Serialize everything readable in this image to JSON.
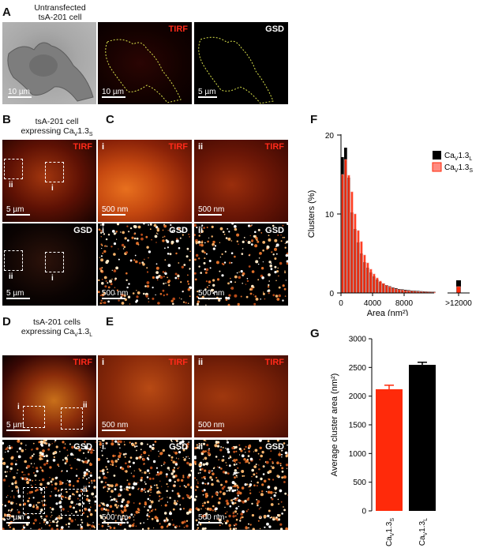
{
  "panels": {
    "A": {
      "label": "A",
      "caption_l1": "Untransfected",
      "caption_l2": "tsA-201 cell",
      "tirf": "TIRF",
      "gsd": "GSD",
      "scale1": "10 µm",
      "scale2": "10 µm",
      "scale3": "5 µm"
    },
    "B": {
      "label": "B",
      "caption_l1": "tsA-201 cell",
      "caption_l2_prefix": "expressing Ca",
      "caption_sub": "V",
      "caption_mid": "1.3",
      "caption_sub2": "S",
      "tirf": "TIRF",
      "gsd": "GSD",
      "scale_top": "5 µm",
      "scale_bottom": "5 µm",
      "roi_i": "i",
      "roi_ii": "ii"
    },
    "C": {
      "label": "C",
      "tirf": "TIRF",
      "gsd": "GSD",
      "i": "i",
      "ii": "ii",
      "scale": "500 nm"
    },
    "D": {
      "label": "D",
      "caption_l1": "tsA-201 cells",
      "caption_l2_prefix": "expressing Ca",
      "caption_sub": "V",
      "caption_mid": "1.3",
      "caption_sub2": "L",
      "tirf": "TIRF",
      "gsd": "GSD",
      "scale_top": "5 µm",
      "scale_bottom": "5 µm",
      "roi_i": "i",
      "roi_ii": "ii"
    },
    "E": {
      "label": "E",
      "tirf": "TIRF",
      "gsd": "GSD",
      "i": "i",
      "ii": "ii",
      "scale": "500 nm"
    },
    "F": {
      "label": "F"
    },
    "G": {
      "label": "G"
    }
  },
  "colors": {
    "red_series": "#ff2a0a",
    "black_series": "#000000",
    "light_red": "#ff8a80",
    "tirf_label": "#ff2a1a",
    "roi_dash": "#ffffff",
    "outline_dash": "#d8e04a"
  },
  "chart_data": [
    {
      "type": "bar",
      "panel": "F",
      "xlabel": "Area (nm²)",
      "ylabel": "Clusters (%)",
      "ylim": [
        0,
        20
      ],
      "yticks": [
        0,
        10,
        20
      ],
      "xticks": [
        "0",
        "4000",
        "8000",
        ">12000"
      ],
      "bin_width": 400,
      "legend": [
        "CaV1.3L",
        "CaV1.3S"
      ],
      "legend_position": "top-right",
      "x": [
        200,
        600,
        1000,
        1400,
        1800,
        2200,
        2600,
        3000,
        3400,
        3800,
        4200,
        4600,
        5000,
        5400,
        5800,
        6200,
        6600,
        7000,
        7400,
        7800,
        8200,
        8600,
        9000,
        9400,
        9800,
        10200,
        10600,
        11000,
        11400,
        11800
      ],
      "series": [
        {
          "name": "CaV1.3L",
          "values": [
            17.2,
            18.4,
            14.6,
            10.2,
            8.1,
            6.4,
            5.0,
            3.9,
            3.2,
            2.6,
            2.1,
            1.7,
            1.4,
            1.2,
            1.0,
            0.85,
            0.7,
            0.6,
            0.5,
            0.45,
            0.4,
            0.35,
            0.3,
            0.28,
            0.25,
            0.22,
            0.2,
            0.18,
            0.16,
            0.15
          ],
          "overflow": 1.6
        },
        {
          "name": "CaV1.3S",
          "values": [
            15.0,
            16.9,
            14.9,
            12.8,
            10.0,
            7.9,
            6.5,
            4.8,
            3.8,
            3.0,
            2.4,
            1.9,
            1.5,
            1.2,
            0.95,
            0.78,
            0.62,
            0.5,
            0.42,
            0.36,
            0.3,
            0.26,
            0.22,
            0.2,
            0.17,
            0.15,
            0.13,
            0.12,
            0.1,
            0.09
          ],
          "overflow": 0.8
        }
      ]
    },
    {
      "type": "bar",
      "panel": "G",
      "ylabel": "Average cluster area (nm²)",
      "ylim": [
        0,
        3000
      ],
      "yticks": [
        0,
        500,
        1000,
        1500,
        2000,
        2500,
        3000
      ],
      "categories": [
        "CaV1.3S",
        "CaV1.3L"
      ],
      "values": [
        2120,
        2545
      ],
      "errors": [
        70,
        45
      ]
    }
  ]
}
